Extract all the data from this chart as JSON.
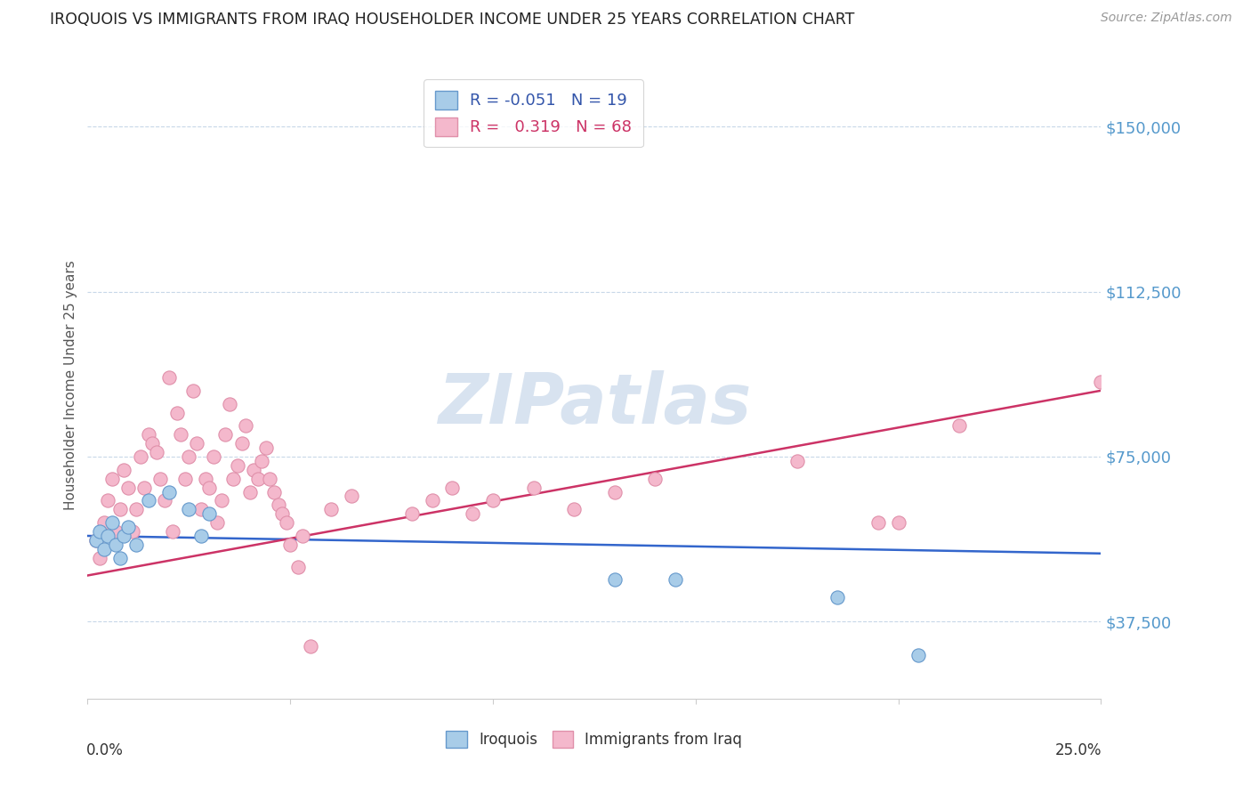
{
  "title": "IROQUOIS VS IMMIGRANTS FROM IRAQ HOUSEHOLDER INCOME UNDER 25 YEARS CORRELATION CHART",
  "source": "Source: ZipAtlas.com",
  "ylabel": "Householder Income Under 25 years",
  "xlim": [
    0.0,
    0.25
  ],
  "ylim": [
    20000,
    162500
  ],
  "yticks": [
    37500,
    75000,
    112500,
    150000
  ],
  "ytick_labels": [
    "$37,500",
    "$75,000",
    "$112,500",
    "$150,000"
  ],
  "color_blue_scatter": "#a8cce8",
  "color_pink_scatter": "#f4b8cc",
  "color_line_blue": "#3366cc",
  "color_line_pink": "#cc3366",
  "color_ytick": "#5599cc",
  "watermark": "ZIPatlas",
  "iroquois_points": [
    [
      0.002,
      56000
    ],
    [
      0.003,
      58000
    ],
    [
      0.004,
      54000
    ],
    [
      0.005,
      57000
    ],
    [
      0.006,
      60000
    ],
    [
      0.007,
      55000
    ],
    [
      0.008,
      52000
    ],
    [
      0.009,
      57000
    ],
    [
      0.01,
      59000
    ],
    [
      0.012,
      55000
    ],
    [
      0.015,
      65000
    ],
    [
      0.02,
      67000
    ],
    [
      0.025,
      63000
    ],
    [
      0.028,
      57000
    ],
    [
      0.03,
      62000
    ],
    [
      0.13,
      47000
    ],
    [
      0.145,
      47000
    ],
    [
      0.185,
      43000
    ],
    [
      0.205,
      30000
    ]
  ],
  "iraq_points": [
    [
      0.002,
      56000
    ],
    [
      0.003,
      52000
    ],
    [
      0.004,
      60000
    ],
    [
      0.005,
      65000
    ],
    [
      0.006,
      70000
    ],
    [
      0.007,
      58000
    ],
    [
      0.008,
      63000
    ],
    [
      0.009,
      72000
    ],
    [
      0.01,
      68000
    ],
    [
      0.011,
      58000
    ],
    [
      0.012,
      63000
    ],
    [
      0.013,
      75000
    ],
    [
      0.014,
      68000
    ],
    [
      0.015,
      80000
    ],
    [
      0.016,
      78000
    ],
    [
      0.017,
      76000
    ],
    [
      0.018,
      70000
    ],
    [
      0.019,
      65000
    ],
    [
      0.02,
      93000
    ],
    [
      0.021,
      58000
    ],
    [
      0.022,
      85000
    ],
    [
      0.023,
      80000
    ],
    [
      0.024,
      70000
    ],
    [
      0.025,
      75000
    ],
    [
      0.026,
      90000
    ],
    [
      0.027,
      78000
    ],
    [
      0.028,
      63000
    ],
    [
      0.029,
      70000
    ],
    [
      0.03,
      68000
    ],
    [
      0.031,
      75000
    ],
    [
      0.032,
      60000
    ],
    [
      0.033,
      65000
    ],
    [
      0.034,
      80000
    ],
    [
      0.035,
      87000
    ],
    [
      0.036,
      70000
    ],
    [
      0.037,
      73000
    ],
    [
      0.038,
      78000
    ],
    [
      0.039,
      82000
    ],
    [
      0.04,
      67000
    ],
    [
      0.041,
      72000
    ],
    [
      0.042,
      70000
    ],
    [
      0.043,
      74000
    ],
    [
      0.044,
      77000
    ],
    [
      0.045,
      70000
    ],
    [
      0.046,
      67000
    ],
    [
      0.047,
      64000
    ],
    [
      0.048,
      62000
    ],
    [
      0.049,
      60000
    ],
    [
      0.05,
      55000
    ],
    [
      0.052,
      50000
    ],
    [
      0.053,
      57000
    ],
    [
      0.055,
      32000
    ],
    [
      0.06,
      63000
    ],
    [
      0.065,
      66000
    ],
    [
      0.08,
      62000
    ],
    [
      0.085,
      65000
    ],
    [
      0.09,
      68000
    ],
    [
      0.095,
      62000
    ],
    [
      0.1,
      65000
    ],
    [
      0.11,
      68000
    ],
    [
      0.12,
      63000
    ],
    [
      0.13,
      67000
    ],
    [
      0.14,
      70000
    ],
    [
      0.175,
      74000
    ],
    [
      0.195,
      60000
    ],
    [
      0.2,
      60000
    ],
    [
      0.215,
      82000
    ],
    [
      0.25,
      92000
    ]
  ],
  "blue_line_y0": 57000,
  "blue_line_y1": 53000,
  "pink_line_y0": 48000,
  "pink_line_y1": 90000
}
